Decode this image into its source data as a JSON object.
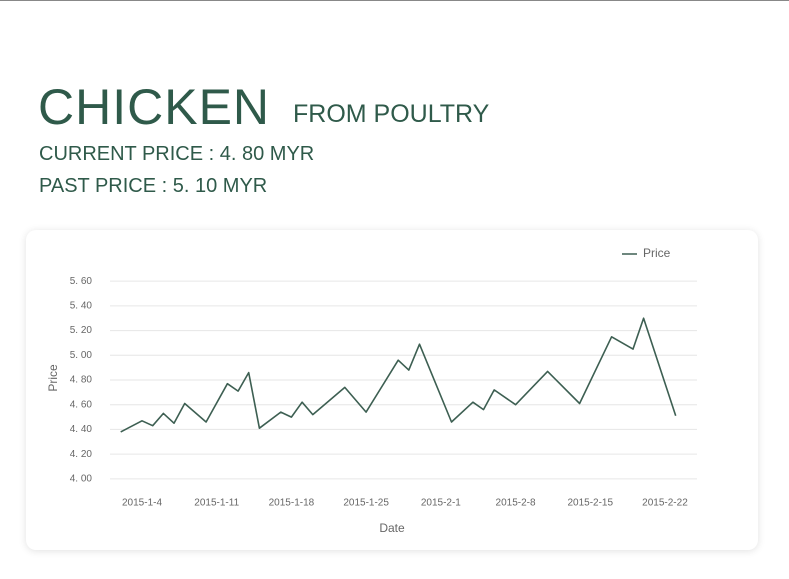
{
  "header": {
    "title": "CHICKEN",
    "subtitle": "FROM POULTRY",
    "current_price": "CURRENT PRICE : 4. 80 MYR",
    "past_price": "PAST PRICE : 5. 10 MYR"
  },
  "chart_data": {
    "type": "line",
    "xlabel": "Date",
    "ylabel": "Price",
    "legend": "top-right",
    "grid": true,
    "x": [
      "2015-1-2",
      "2015-1-4",
      "2015-1-5",
      "2015-1-6",
      "2015-1-7",
      "2015-1-8",
      "2015-1-10",
      "2015-1-12",
      "2015-1-13",
      "2015-1-14",
      "2015-1-15",
      "2015-1-17",
      "2015-1-18",
      "2015-1-19",
      "2015-1-20",
      "2015-1-23",
      "2015-1-25",
      "2015-1-28",
      "2015-1-29",
      "2015-1-30",
      "2015-2-2",
      "2015-2-4",
      "2015-2-5",
      "2015-2-6",
      "2015-2-8",
      "2015-2-11",
      "2015-2-14",
      "2015-2-17",
      "2015-2-19",
      "2015-2-20",
      "2015-2-23"
    ],
    "xlim": [
      "2015-1-1",
      "2015-2-25"
    ],
    "xticks": [
      "2015-1-4",
      "2015-1-11",
      "2015-1-18",
      "2015-1-25",
      "2015-2-1",
      "2015-2-8",
      "2015-2-15",
      "2015-2-22"
    ],
    "ylim": [
      3.95,
      5.65
    ],
    "yticks": [
      {
        "value": 4.0,
        "label": "4. 00"
      },
      {
        "value": 4.2,
        "label": "4. 20"
      },
      {
        "value": 4.4,
        "label": "4. 40"
      },
      {
        "value": 4.6,
        "label": "4. 60"
      },
      {
        "value": 4.8,
        "label": "4. 80"
      },
      {
        "value": 5.0,
        "label": "5. 00"
      },
      {
        "value": 5.2,
        "label": "5. 20"
      },
      {
        "value": 5.4,
        "label": "5. 40"
      },
      {
        "value": 5.6,
        "label": "5. 60"
      }
    ],
    "series": [
      {
        "name": "Price",
        "color": "#3d5f52",
        "values": [
          4.38,
          4.47,
          4.43,
          4.53,
          4.45,
          4.61,
          4.46,
          4.77,
          4.71,
          4.86,
          4.41,
          4.54,
          4.5,
          4.62,
          4.52,
          4.74,
          4.54,
          4.96,
          4.88,
          5.09,
          4.46,
          4.62,
          4.56,
          4.72,
          4.6,
          4.87,
          4.61,
          5.15,
          5.05,
          5.3,
          4.51
        ]
      }
    ]
  }
}
